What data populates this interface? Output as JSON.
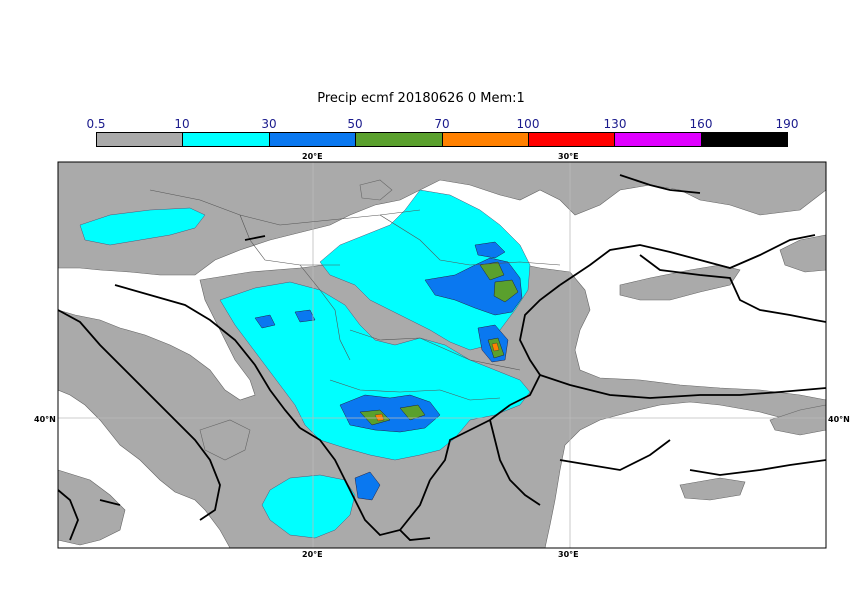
{
  "title": "Precip ecmf 20180626 0 Mem:1",
  "colorbar": {
    "levels": [
      "0.5",
      "10",
      "30",
      "50",
      "70",
      "100",
      "130",
      "160",
      "190"
    ],
    "colors": [
      "#aaaaaa",
      "#00ffff",
      "#0a78f0",
      "#5aa02d",
      "#ff8000",
      "#ff0000",
      "#e000ff",
      "#000000"
    ]
  },
  "axes": {
    "lon_top": [
      "20°E",
      "30°E"
    ],
    "lon_bottom": [
      "20°E",
      "30°E"
    ],
    "lat_left": "40°N",
    "lat_right": "40°N"
  },
  "map_colors": {
    "land": "#ffffff",
    "sea": "#ffffff",
    "coast": "#000000",
    "border": "#555555",
    "grid": "#bbbbbb"
  }
}
